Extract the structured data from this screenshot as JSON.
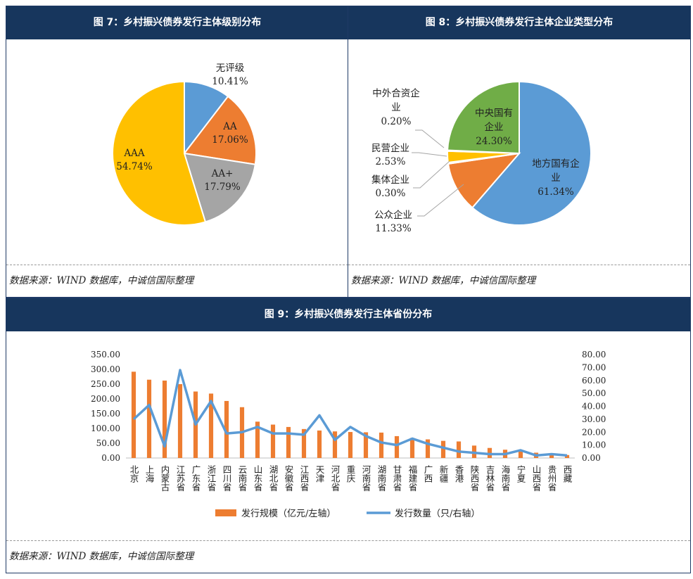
{
  "colors": {
    "header_bg": "#17365d",
    "blue": "#5b9bd5",
    "orange": "#ed7d31",
    "gray": "#a5a5a5",
    "yellow": "#ffc000",
    "green": "#70ad47"
  },
  "fig7": {
    "title": "图 7：乡村振兴债券发行主体级别分布",
    "source": "数据来源：WIND 数据库，中诚信国际整理"
  },
  "fig8": {
    "title": "图 8：乡村振兴债券发行主体企业类型分布",
    "source": "数据来源：WIND 数据库，中诚信国际整理"
  },
  "fig9": {
    "title": "图 9：乡村振兴债券发行主体省份分布",
    "source": "数据来源：WIND 数据库，中诚信国际整理"
  },
  "chart_data": [
    {
      "type": "pie",
      "slices": [
        {
          "label": "无评级",
          "value": 10.41,
          "text": "10.41%"
        },
        {
          "label": "AA",
          "value": 17.06,
          "text": "17.06%"
        },
        {
          "label": "AA+",
          "value": 17.79,
          "text": "17.79%"
        },
        {
          "label": "AAA",
          "value": 54.74,
          "text": "54.74%"
        }
      ]
    },
    {
      "type": "pie",
      "slices": [
        {
          "label": "地方国有企业",
          "value": 61.34,
          "text": "61.34%"
        },
        {
          "label": "公众企业",
          "value": 11.33,
          "text": "11.33%"
        },
        {
          "label": "集体企业",
          "value": 0.3,
          "text": "0.30%"
        },
        {
          "label": "民营企业",
          "value": 2.53,
          "text": "2.53%"
        },
        {
          "label": "中外合资企业",
          "value": 0.2,
          "text": "0.20%"
        },
        {
          "label": "中央国有企业",
          "value": 24.3,
          "text": "24.30%"
        }
      ]
    },
    {
      "type": "bar",
      "categories": [
        "北京",
        "上海",
        "内蒙古",
        "江苏省",
        "广东省",
        "浙江省",
        "四川省",
        "云南省",
        "山东省",
        "湖北省",
        "安徽省",
        "江西省",
        "天津",
        "河北省",
        "重庆",
        "河南省",
        "湖南省",
        "甘肃省",
        "福建省",
        "广西",
        "新疆",
        "香港",
        "陕西省",
        "吉林省",
        "海南省",
        "宁夏",
        "山西省",
        "贵州省",
        "西藏"
      ],
      "series": [
        {
          "name": "发行规模（亿元/左轴）",
          "type": "bar",
          "axis": "left",
          "values": [
            292,
            265,
            262,
            250,
            225,
            218,
            193,
            172,
            123,
            113,
            105,
            98,
            93,
            90,
            88,
            87,
            86,
            74,
            68,
            63,
            58,
            56,
            42,
            34,
            28,
            22,
            18,
            15,
            10
          ]
        },
        {
          "name": "发行数量（只/右轴）",
          "type": "line",
          "axis": "right",
          "values": [
            30,
            41,
            9,
            68,
            26,
            44,
            19,
            20,
            24,
            19,
            19,
            18,
            33,
            14,
            24,
            17,
            12,
            10,
            15,
            11,
            8,
            5,
            4,
            3,
            3,
            6,
            2,
            3,
            2
          ]
        }
      ],
      "yleft": {
        "ylim": [
          0,
          350
        ],
        "ticks": [
          "0.00",
          "50.00",
          "100.00",
          "150.00",
          "200.00",
          "250.00",
          "300.00",
          "350.00"
        ]
      },
      "yright": {
        "ylim": [
          0,
          80
        ],
        "ticks": [
          "0.00",
          "10.00",
          "20.00",
          "30.00",
          "40.00",
          "50.00",
          "60.00",
          "70.00",
          "80.00"
        ]
      },
      "legend_position": "bottom"
    }
  ]
}
